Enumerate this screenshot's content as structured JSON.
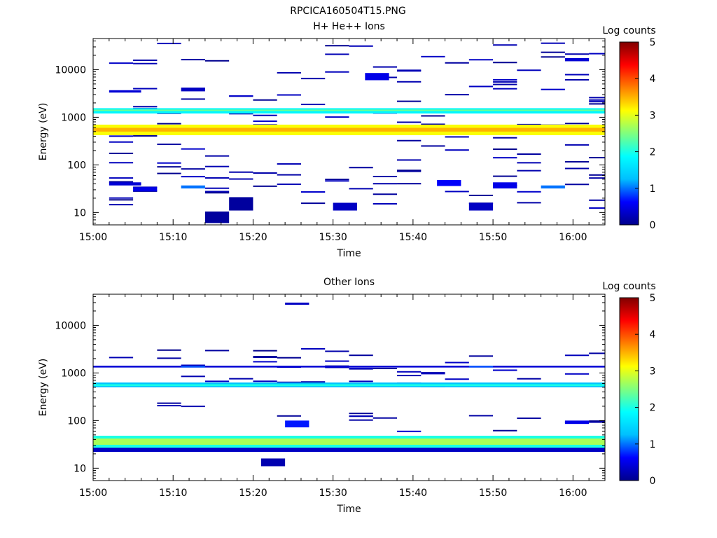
{
  "figure_title": "RPCICA160504T15.PNG",
  "colors": {
    "colormap": [
      "#00008b",
      "#0000ff",
      "#00bfff",
      "#00ffff",
      "#7fff7f",
      "#ffff00",
      "#ff7f00",
      "#ff0000",
      "#800000"
    ]
  },
  "chart_data": [
    {
      "type": "heatmap",
      "title": "H+ He++ Ions",
      "xlabel": "Time",
      "ylabel": "Energy (eV)",
      "x_ticks": [
        "15:00",
        "15:10",
        "15:20",
        "15:30",
        "15:40",
        "15:50",
        "16:00"
      ],
      "x_range_min": [
        0,
        64
      ],
      "y_ticks": [
        "10",
        "100",
        "1000",
        "10000"
      ],
      "y_scale": "log",
      "y_range": [
        5.5,
        45000
      ],
      "colorbar": {
        "label": "Log counts",
        "ticks": [
          "0",
          "1",
          "2",
          "3",
          "4",
          "5"
        ],
        "range": [
          0,
          5
        ]
      },
      "bands": [
        {
          "emin": 420,
          "emax": 700,
          "x_from": 0,
          "x_to": 64,
          "level": 3.1
        },
        {
          "emin": 500,
          "emax": 600,
          "x_from": 0,
          "x_to": 64,
          "level": 3.5
        },
        {
          "emin": 1200,
          "emax": 1550,
          "x_from": 0,
          "x_to": 64,
          "level": 1.8
        },
        {
          "emin": 1350,
          "emax": 1450,
          "x_from": 0,
          "x_to": 64,
          "level": 2.4
        }
      ],
      "blocks": [
        {
          "t": 2,
          "dt": 4,
          "emin": 3300,
          "emax": 3700,
          "level": 0.4
        },
        {
          "t": 2,
          "dt": 4,
          "emin": 37,
          "emax": 43,
          "level": 0.4
        },
        {
          "t": 5,
          "dt": 3,
          "emin": 28,
          "emax": 34,
          "level": 0.5
        },
        {
          "t": 11,
          "dt": 3,
          "emin": 32,
          "emax": 37,
          "level": 1.0
        },
        {
          "t": 14,
          "dt": 3,
          "emin": 6,
          "emax": 10.5,
          "level": 0.1
        },
        {
          "t": 17,
          "dt": 3,
          "emin": 11,
          "emax": 21,
          "level": 0.1
        },
        {
          "t": 30,
          "dt": 3,
          "emin": 11,
          "emax": 16,
          "level": 0.3
        },
        {
          "t": 34,
          "dt": 3,
          "emin": 6000,
          "emax": 8500,
          "level": 0.5
        },
        {
          "t": 43,
          "dt": 3,
          "emin": 36,
          "emax": 48,
          "level": 0.6
        },
        {
          "t": 47,
          "dt": 3,
          "emin": 11,
          "emax": 16,
          "level": 0.3
        },
        {
          "t": 50,
          "dt": 3,
          "emin": 32,
          "emax": 43,
          "level": 0.5
        },
        {
          "t": 56,
          "dt": 3,
          "emin": 32,
          "emax": 37,
          "level": 1.0
        },
        {
          "t": 11,
          "dt": 3,
          "emin": 3500,
          "emax": 4200,
          "level": 0.3
        },
        {
          "t": 59,
          "dt": 3,
          "emin": 15000,
          "emax": 17500,
          "level": 0.4
        }
      ]
    },
    {
      "type": "heatmap",
      "title": "Other Ions",
      "xlabel": "Time",
      "ylabel": "Energy (eV)",
      "x_ticks": [
        "15:00",
        "15:10",
        "15:20",
        "15:30",
        "15:40",
        "15:50",
        "16:00"
      ],
      "x_range_min": [
        0,
        64
      ],
      "y_ticks": [
        "10",
        "100",
        "1000",
        "10000"
      ],
      "y_scale": "log",
      "y_range": [
        5.5,
        45000
      ],
      "colorbar": {
        "label": "Log counts",
        "ticks": [
          "0",
          "1",
          "2",
          "3",
          "4",
          "5"
        ],
        "range": [
          0,
          5
        ]
      },
      "bands": [
        {
          "emin": 27,
          "emax": 48,
          "x_from": 0,
          "x_to": 64,
          "level": 2.0
        },
        {
          "emin": 31,
          "emax": 42,
          "x_from": 0,
          "x_to": 64,
          "level": 2.7
        },
        {
          "emin": 22,
          "emax": 27,
          "x_from": 0,
          "x_to": 64,
          "level": 0.3
        },
        {
          "emin": 500,
          "emax": 630,
          "x_from": 0,
          "x_to": 64,
          "level": 1.3
        },
        {
          "emin": 530,
          "emax": 580,
          "x_from": 0,
          "x_to": 64,
          "level": 2.0
        },
        {
          "emin": 1300,
          "emax": 1420,
          "x_from": 0,
          "x_to": 64,
          "level": 0.4
        }
      ],
      "blocks": [
        {
          "t": 21,
          "dt": 3,
          "emin": 11,
          "emax": 16,
          "level": 0.2
        },
        {
          "t": 24,
          "dt": 3,
          "emin": 72,
          "emax": 100,
          "level": 0.7
        },
        {
          "t": 59,
          "dt": 3,
          "emin": 85,
          "emax": 100,
          "level": 0.5
        },
        {
          "t": 24,
          "dt": 3,
          "emin": 27000,
          "emax": 30000,
          "level": 0.3
        },
        {
          "t": 11,
          "dt": 3,
          "emin": 1300,
          "emax": 1420,
          "level": 0.9
        },
        {
          "t": 47,
          "dt": 3,
          "emin": 1300,
          "emax": 1420,
          "level": 0.9
        }
      ]
    }
  ]
}
